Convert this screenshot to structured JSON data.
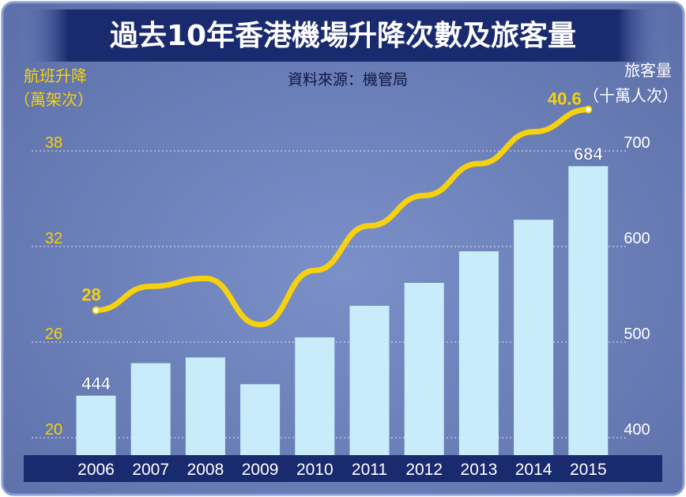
{
  "chart_data": {
    "type": "bar",
    "title": "過去10年香港機場升降次數及旅客量",
    "subtitle": "資料來源：機管局",
    "left_axis_label_line1": "航班升降",
    "left_axis_label_line2": "（萬架次）",
    "right_axis_label_line1": "旅客量",
    "right_axis_label_line2": "（十萬人次）",
    "categories": [
      "2006",
      "2007",
      "2008",
      "2009",
      "2010",
      "2011",
      "2012",
      "2013",
      "2014",
      "2015"
    ],
    "y_left": {
      "ticks": [
        20,
        26,
        32,
        38
      ],
      "range": [
        20,
        41
      ]
    },
    "y_right": {
      "ticks": [
        400,
        500,
        600,
        700
      ],
      "range": [
        380,
        740
      ]
    },
    "grid": true,
    "series": [
      {
        "name": "旅客量",
        "kind": "bar",
        "axis": "right",
        "values": [
          444,
          478,
          484,
          456,
          505,
          538,
          562,
          595,
          628,
          684
        ]
      },
      {
        "name": "航班升降",
        "kind": "line",
        "axis": "left",
        "values": [
          28,
          29.5,
          30,
          27.1,
          30.5,
          33.3,
          35.2,
          37.2,
          39.2,
          40.6
        ]
      }
    ],
    "data_labels": [
      {
        "series": "旅客量",
        "index": 0,
        "text": "444"
      },
      {
        "series": "旅客量",
        "index": 9,
        "text": "684"
      },
      {
        "series": "航班升降",
        "index": 0,
        "text": "28"
      },
      {
        "series": "航班升降",
        "index": 9,
        "text": "40.6"
      }
    ],
    "colors": {
      "background": "#6b7fb4",
      "title_bar": "#1a2a6e",
      "title_text": "#ffffff",
      "bar": "#c9ecfa",
      "line": "#f6d10e",
      "axis_text": "#f6d10e",
      "right_axis_text": "#ffffff",
      "gridline": "#c8d3ef",
      "xaxis_bar": "#1a2a6e",
      "xaxis_text": "#ffffff",
      "bar_label": "#ffffff",
      "border": "#6e7fc0",
      "subtitle_text": "#0f1740"
    }
  }
}
